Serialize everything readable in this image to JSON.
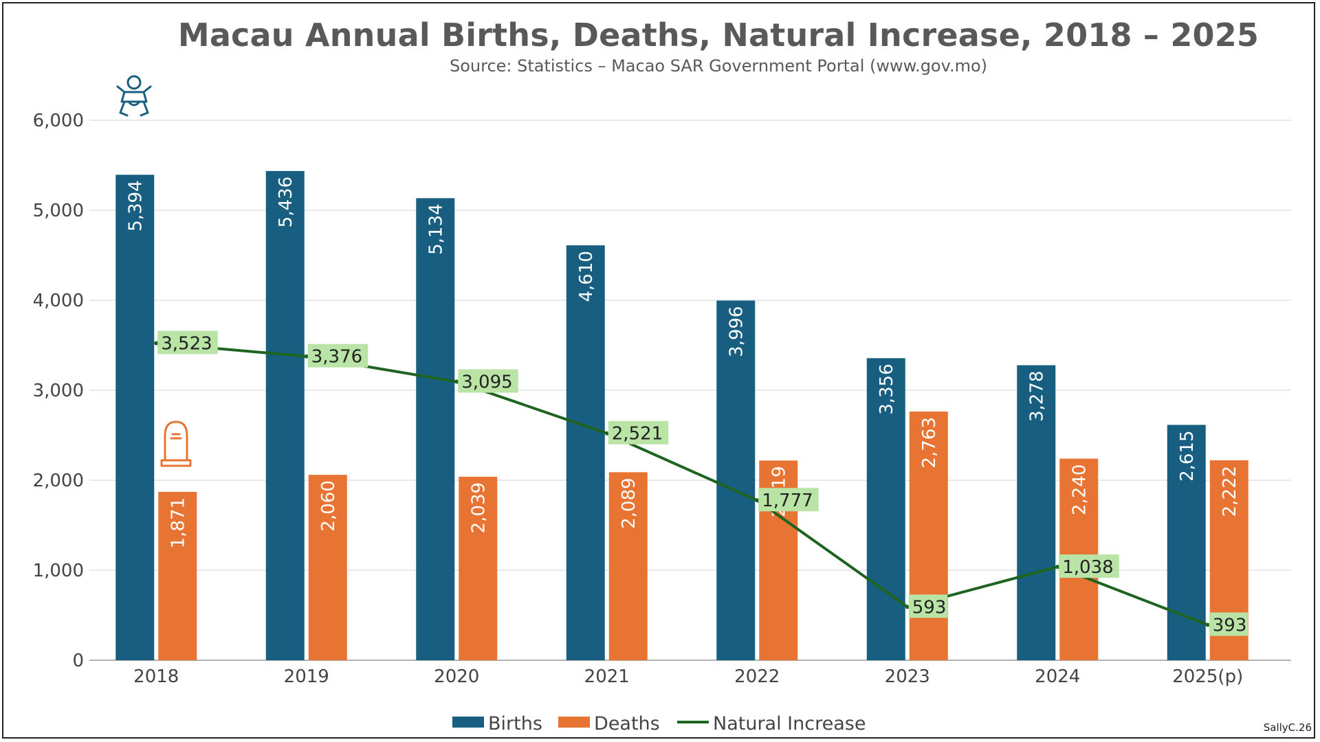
{
  "chart_data": {
    "type": "bar",
    "title": "Macau Annual Births, Deaths, Natural Increase, 2018 – 2025",
    "subtitle": "Source: Statistics – Macao SAR Government Portal (www.gov.mo)",
    "categories": [
      "2018",
      "2019",
      "2020",
      "2021",
      "2022",
      "2023",
      "2024",
      "2025(p)"
    ],
    "series": [
      {
        "name": "Births",
        "kind": "bar",
        "color": "#175e80",
        "values": [
          5394,
          5436,
          5134,
          4610,
          3996,
          3356,
          3278,
          2615
        ],
        "labels": [
          "5,394",
          "5,436",
          "5,134",
          "4,610",
          "3,996",
          "3,356",
          "3,278",
          "2,615"
        ]
      },
      {
        "name": "Deaths",
        "kind": "bar",
        "color": "#e87434",
        "values": [
          1871,
          2060,
          2039,
          2089,
          2219,
          2763,
          2240,
          2222
        ],
        "labels": [
          "1,871",
          "2,060",
          "2,039",
          "2,089",
          "2,219",
          "2,763",
          "2,240",
          "2,222"
        ]
      },
      {
        "name": "Natural Increase",
        "kind": "line",
        "color": "#1e6420",
        "values": [
          3523,
          3376,
          3095,
          2521,
          1777,
          593,
          1038,
          393
        ],
        "labels": [
          "3,523",
          "3,376",
          "3,095",
          "2,521",
          "1,777",
          "593",
          "1,038",
          "393"
        ]
      }
    ],
    "ylim": [
      0,
      6000
    ],
    "yticks": [
      0,
      1000,
      2000,
      3000,
      4000,
      5000,
      6000
    ],
    "ytick_labels": [
      "0",
      "1,000",
      "2,000",
      "3,000",
      "4,000",
      "5,000",
      "6,000"
    ],
    "xlabel": "",
    "ylabel": "",
    "grid": true,
    "legend_position": "bottom-center",
    "line_label_bg": "#b9e4a6",
    "icons": {
      "births": "baby-icon",
      "deaths": "tombstone-icon"
    }
  },
  "credit": "SallyC.26"
}
